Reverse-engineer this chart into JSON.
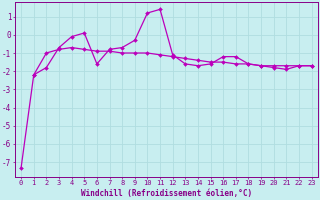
{
  "xlabel": "Windchill (Refroidissement éolien,°C)",
  "background_color": "#c8eef0",
  "grid_color": "#b0dde0",
  "line_color": "#bb00bb",
  "x_series1": [
    0,
    1,
    2,
    3,
    4,
    5,
    6,
    7,
    8,
    9,
    10,
    11,
    12,
    13,
    14,
    15,
    16,
    17,
    18,
    19,
    20,
    21,
    22,
    23
  ],
  "y_series1": [
    -7.3,
    -2.2,
    -1.8,
    -0.7,
    -0.1,
    0.1,
    -1.6,
    -0.8,
    -0.7,
    -0.3,
    1.2,
    1.4,
    -1.1,
    -1.6,
    -1.7,
    -1.6,
    -1.2,
    -1.2,
    -1.6,
    -1.7,
    -1.8,
    -1.9,
    -1.7,
    -1.7
  ],
  "x_series2": [
    1,
    2,
    3,
    4,
    5,
    6,
    7,
    8,
    9,
    10,
    11,
    12,
    13,
    14,
    15,
    16,
    17,
    18,
    19,
    20,
    21,
    22,
    23
  ],
  "y_series2": [
    -2.2,
    -1.0,
    -0.8,
    -0.7,
    -0.8,
    -0.9,
    -0.9,
    -1.0,
    -1.0,
    -1.0,
    -1.1,
    -1.2,
    -1.3,
    -1.4,
    -1.5,
    -1.5,
    -1.6,
    -1.6,
    -1.7,
    -1.7,
    -1.7,
    -1.7,
    -1.7
  ],
  "ylim": [
    -7.8,
    1.8
  ],
  "xlim": [
    -0.5,
    23.5
  ],
  "yticks": [
    1,
    0,
    -1,
    -2,
    -3,
    -4,
    -5,
    -6,
    -7
  ],
  "xticks": [
    0,
    1,
    2,
    3,
    4,
    5,
    6,
    7,
    8,
    9,
    10,
    11,
    12,
    13,
    14,
    15,
    16,
    17,
    18,
    19,
    20,
    21,
    22,
    23
  ],
  "marker": "D",
  "marker_size": 2.0,
  "line_width": 0.9,
  "tick_fontsize": 5.0,
  "xlabel_fontsize": 5.5,
  "spine_color": "#880088"
}
